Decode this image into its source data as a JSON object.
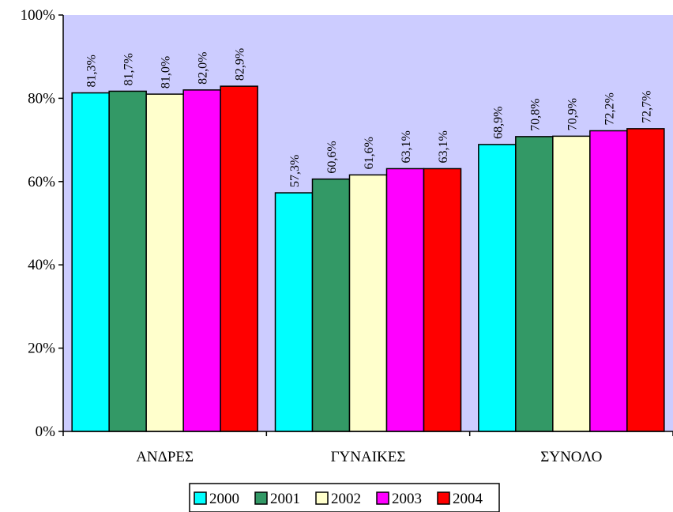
{
  "chart_data": {
    "type": "bar",
    "categories": [
      "ΑΝΔΡΕΣ",
      "ΓΥΝΑΙΚΕΣ",
      "ΣΥΝΟΛΟ"
    ],
    "series": [
      {
        "name": "2000",
        "color": "#00ffff",
        "values": [
          81.3,
          57.3,
          68.9
        ],
        "labels": [
          "81,3%",
          "57,3%",
          "68,9%"
        ]
      },
      {
        "name": "2001",
        "color": "#339966",
        "values": [
          81.7,
          60.6,
          70.8
        ],
        "labels": [
          "81,7%",
          "60,6%",
          "70,8%"
        ]
      },
      {
        "name": "2002",
        "color": "#ffffcc",
        "values": [
          81.0,
          61.6,
          70.9
        ],
        "labels": [
          "81,0%",
          "61,6%",
          "70,9%"
        ]
      },
      {
        "name": "2003",
        "color": "#ff00ff",
        "values": [
          82.0,
          63.1,
          72.2
        ],
        "labels": [
          "82,0%",
          "63,1%",
          "72,2%"
        ]
      },
      {
        "name": "2004",
        "color": "#ff0000",
        "values": [
          82.9,
          63.1,
          72.7
        ],
        "labels": [
          "82,9%",
          "63,1%",
          "72,7%"
        ]
      }
    ],
    "yticks": [
      "0%",
      "20%",
      "40%",
      "60%",
      "80%",
      "100%"
    ],
    "ylim": [
      0,
      100
    ],
    "plot_background": "#ccccff",
    "grid": false,
    "legend_position": "bottom"
  }
}
